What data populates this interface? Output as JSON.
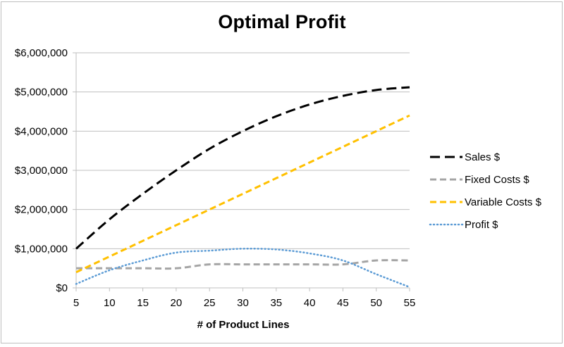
{
  "chart_data": {
    "type": "line",
    "title": "Optimal Profit",
    "xlabel": "# of Product Lines",
    "ylabel": "",
    "x": [
      5,
      10,
      15,
      20,
      25,
      30,
      35,
      40,
      45,
      50,
      55
    ],
    "xlim": [
      5,
      55
    ],
    "ylim": [
      0,
      6000000
    ],
    "yticks": [
      0,
      1000000,
      2000000,
      3000000,
      4000000,
      5000000,
      6000000
    ],
    "ytick_labels": [
      "$0",
      "$1,000,000",
      "$2,000,000",
      "$3,000,000",
      "$4,000,000",
      "$5,000,000",
      "$6,000,000"
    ],
    "xtick_labels": [
      "5",
      "10",
      "15",
      "20",
      "25",
      "30",
      "35",
      "40",
      "45",
      "50",
      "55"
    ],
    "grid": "horizontal",
    "legend_position": "right",
    "series": [
      {
        "name": "Sales $",
        "color": "#000000",
        "style": "long-dash",
        "values": [
          1000000,
          1750000,
          2400000,
          3000000,
          3550000,
          4000000,
          4380000,
          4680000,
          4900000,
          5050000,
          5120000
        ]
      },
      {
        "name": "Fixed Costs $",
        "color": "#a5a5a5",
        "style": "dash",
        "values": [
          500000,
          500000,
          500000,
          500000,
          600000,
          600000,
          600000,
          600000,
          600000,
          700000,
          700000
        ]
      },
      {
        "name": "Variable Costs $",
        "color": "#ffc000",
        "style": "dash",
        "values": [
          400000,
          800000,
          1200000,
          1600000,
          2000000,
          2400000,
          2800000,
          3200000,
          3600000,
          4000000,
          4400000
        ]
      },
      {
        "name": "Profit $",
        "color": "#5b9bd5",
        "style": "dot",
        "values": [
          100000,
          450000,
          700000,
          900000,
          950000,
          1000000,
          980000,
          880000,
          700000,
          350000,
          20000
        ]
      }
    ]
  }
}
